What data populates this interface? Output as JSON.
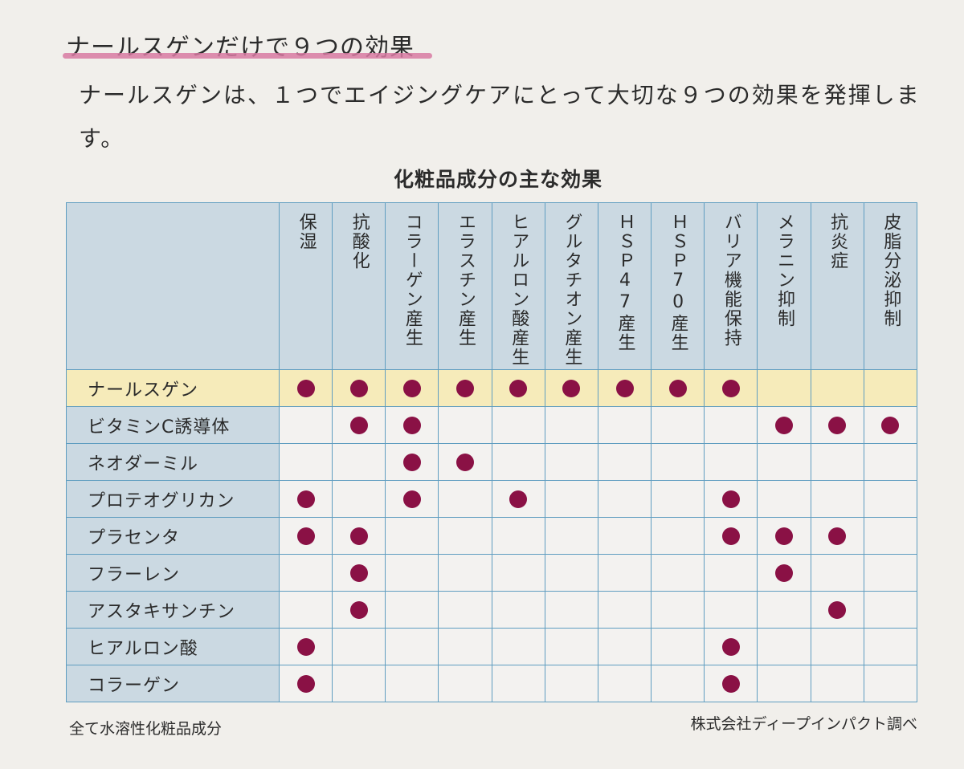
{
  "heading": "ナールスゲンだけで９つの効果",
  "intro": "ナールスゲンは、１つでエイジングケアにとって大切な９つの効果を発揮します。",
  "table": {
    "title": "化粧品成分の主な効果",
    "columns": [
      "保湿",
      "抗酸化",
      "コラーゲン産生",
      "エラスチン産生",
      "ヒアルロン酸産生",
      "グルタチオン産生",
      "ＨＳＰ47産生",
      "ＨＳＰ70産生",
      "バリア機能保持",
      "メラニン抑制",
      "抗炎症",
      "皮脂分泌抑制"
    ],
    "rows": [
      {
        "label": "ナールスゲン",
        "highlight": true,
        "marks": [
          1,
          1,
          1,
          1,
          1,
          1,
          1,
          1,
          1,
          0,
          0,
          0
        ]
      },
      {
        "label": "ビタミンC誘導体",
        "highlight": false,
        "marks": [
          0,
          1,
          1,
          0,
          0,
          0,
          0,
          0,
          0,
          1,
          1,
          1
        ]
      },
      {
        "label": "ネオダーミル",
        "highlight": false,
        "marks": [
          0,
          0,
          1,
          1,
          0,
          0,
          0,
          0,
          0,
          0,
          0,
          0
        ]
      },
      {
        "label": "プロテオグリカン",
        "highlight": false,
        "marks": [
          1,
          0,
          1,
          0,
          1,
          0,
          0,
          0,
          1,
          0,
          0,
          0
        ]
      },
      {
        "label": "プラセンタ",
        "highlight": false,
        "marks": [
          1,
          1,
          0,
          0,
          0,
          0,
          0,
          0,
          1,
          1,
          1,
          0
        ]
      },
      {
        "label": "フラーレン",
        "highlight": false,
        "marks": [
          0,
          1,
          0,
          0,
          0,
          0,
          0,
          0,
          0,
          1,
          0,
          0
        ]
      },
      {
        "label": "アスタキサンチン",
        "highlight": false,
        "marks": [
          0,
          1,
          0,
          0,
          0,
          0,
          0,
          0,
          0,
          0,
          1,
          0
        ]
      },
      {
        "label": "ヒアルロン酸",
        "highlight": false,
        "marks": [
          1,
          0,
          0,
          0,
          0,
          0,
          0,
          0,
          1,
          0,
          0,
          0
        ]
      },
      {
        "label": "コラーゲン",
        "highlight": false,
        "marks": [
          1,
          0,
          0,
          0,
          0,
          0,
          0,
          0,
          1,
          0,
          0,
          0
        ]
      }
    ]
  },
  "footnote_left": "全て水溶性化粧品成分",
  "footnote_right": "株式会社ディープインパクト調べ",
  "colors": {
    "header_bg": "#cbd9e2",
    "highlight_bg": "#f6ebba",
    "dot": "#8a1145",
    "grid": "#5f9dc0",
    "underline": "#d87aa2"
  }
}
